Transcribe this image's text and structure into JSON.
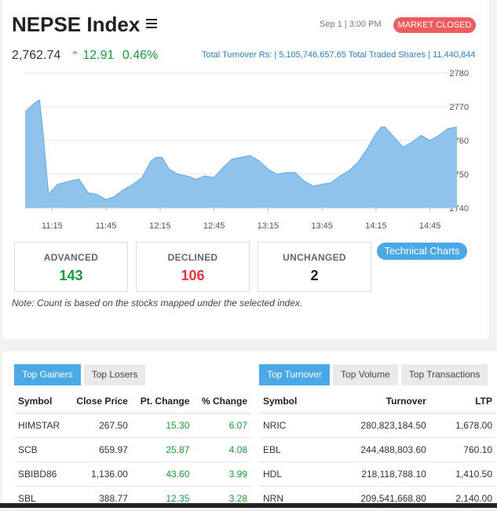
{
  "header": {
    "title": "NEPSE Index",
    "datetime": "Sep 1 | 3:00 PM",
    "market_status": "MARKET CLOSED",
    "index_value": "2,762.74",
    "change_arrow": "^",
    "point_change": "12.91",
    "percent_change": "0.46%",
    "turnover_text": "Total Turnover Rs: | 5,105,746,657.65   Total Traded Shares | 11,440,844"
  },
  "chart_data": {
    "type": "area",
    "ylim": [
      2740,
      2780
    ],
    "yticks": [
      "2780",
      "2770",
      "2760",
      "2750",
      "2740"
    ],
    "xticks": [
      "11:15",
      "11:45",
      "12:15",
      "12:45",
      "13:15",
      "13:45",
      "14:15",
      "14:45"
    ],
    "x": [
      "11:00",
      "11:05",
      "11:08",
      "11:10",
      "11:13",
      "11:18",
      "11:25",
      "11:30",
      "11:35",
      "11:40",
      "11:45",
      "11:50",
      "11:55",
      "12:00",
      "12:05",
      "12:10",
      "12:13",
      "12:16",
      "12:20",
      "12:25",
      "12:30",
      "12:35",
      "12:40",
      "12:45",
      "12:50",
      "12:55",
      "13:00",
      "13:05",
      "13:10",
      "13:15",
      "13:20",
      "13:25",
      "13:30",
      "13:35",
      "13:40",
      "13:45",
      "13:50",
      "13:55",
      "14:00",
      "14:05",
      "14:10",
      "14:15",
      "14:18",
      "14:20",
      "14:25",
      "14:30",
      "14:35",
      "14:40",
      "14:45",
      "14:50",
      "14:55",
      "15:00"
    ],
    "values": [
      2768.5,
      2771,
      2772,
      2762,
      2744,
      2747,
      2748,
      2748.5,
      2744.5,
      2744,
      2742.5,
      2743.5,
      2745.5,
      2747,
      2749,
      2754,
      2755,
      2755,
      2751.5,
      2750,
      2749.5,
      2748.5,
      2749.5,
      2749,
      2752,
      2754.5,
      2755,
      2755.5,
      2754,
      2751.5,
      2750,
      2750.5,
      2750.5,
      2748,
      2746.5,
      2747,
      2747.5,
      2749.5,
      2751,
      2753.5,
      2757.5,
      2762,
      2764,
      2764,
      2761,
      2758,
      2759.5,
      2761.5,
      2760,
      2761.5,
      2763.5,
      2764
    ]
  },
  "stats": {
    "advanced_label": "ADVANCED",
    "advanced_value": "143",
    "declined_label": "DECLINED",
    "declined_value": "106",
    "unchanged_label": "UNCHANGED",
    "unchanged_value": "2"
  },
  "colors": {
    "advanced": "#1a9a3a",
    "declined": "#e0383e",
    "unchanged": "#222222"
  },
  "tech_charts_label": "Technical Charts",
  "note": "Note: Count is based on the stocks mapped under the selected index.",
  "gainers_tabs": [
    "Top Gainers",
    "Top Losers"
  ],
  "turnover_tabs": [
    "Top Turnover",
    "Top Volume",
    "Top Transactions"
  ],
  "gainers_table": {
    "headers": [
      "Symbol",
      "Close Price",
      "Pt. Change",
      "% Change"
    ],
    "rows": [
      [
        "HIMSTAR",
        "267.50",
        "15.30",
        "6.07"
      ],
      [
        "SCB",
        "659.97",
        "25.87",
        "4.08"
      ],
      [
        "SBIBD86",
        "1,136.00",
        "43.60",
        "3.99"
      ],
      [
        "SBL",
        "388.77",
        "12.35",
        "3.28"
      ]
    ]
  },
  "turnover_table": {
    "headers": [
      "Symbol",
      "Turnover",
      "LTP"
    ],
    "rows": [
      [
        "NRIC",
        "280,823,184.50",
        "1,678.00"
      ],
      [
        "EBL",
        "244,488,803.60",
        "760.10"
      ],
      [
        "HDL",
        "218,118,788.10",
        "1,410.50"
      ],
      [
        "NRN",
        "209,541,668.80",
        "2,140.00"
      ]
    ]
  }
}
